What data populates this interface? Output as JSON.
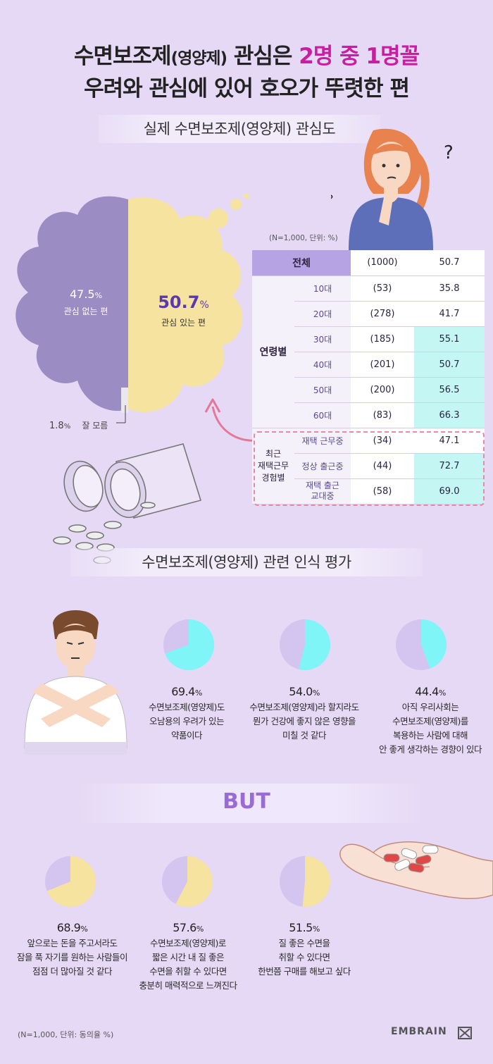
{
  "header": {
    "line1_a": "수면보조제",
    "line1_b": "(영양제)",
    "line1_c": " 관심은 ",
    "line1_hl": "2명 중 1명꼴",
    "line2": "우려와 관심에 있어 호오가 뚜렷한 편"
  },
  "section1": {
    "title": "실제 수면보조제(영양제) 관심도"
  },
  "cloud": {
    "no_interest_pct": "47.5",
    "no_interest_label": "관심 없는 편",
    "interest_pct": "50.7",
    "interest_label": "관심 있는 편",
    "unknown_pct": "1.8",
    "unknown_label": "잘 모름",
    "pct_sign": "%"
  },
  "table": {
    "note": "(N=1,000, 단위: %)",
    "total": {
      "label": "전체",
      "n": "(1000)",
      "value": "50.7"
    },
    "age_group_label": "연령별",
    "age_rows": [
      {
        "label": "10대",
        "n": "(53)",
        "value": "35.8",
        "highlight": false
      },
      {
        "label": "20대",
        "n": "(278)",
        "value": "41.7",
        "highlight": false
      },
      {
        "label": "30대",
        "n": "(185)",
        "value": "55.1",
        "highlight": true
      },
      {
        "label": "40대",
        "n": "(201)",
        "value": "50.7",
        "highlight": true
      },
      {
        "label": "50대",
        "n": "(200)",
        "value": "56.5",
        "highlight": true
      },
      {
        "label": "60대",
        "n": "(83)",
        "value": "66.3",
        "highlight": true
      }
    ],
    "remote_group_label_1": "최근",
    "remote_group_label_2": "재택근무",
    "remote_group_label_3": "경험별",
    "remote_rows": [
      {
        "label": "재택 근무중",
        "n": "(34)",
        "value": "47.1",
        "highlight": false
      },
      {
        "label": "정상 출근중",
        "n": "(44)",
        "value": "72.7",
        "highlight": true
      },
      {
        "label_1": "재택 출근",
        "label_2": "교대중",
        "n": "(58)",
        "value": "69.0",
        "highlight": true
      }
    ]
  },
  "section2": {
    "title": "수면보조제(영양제) 관련 인식 평가"
  },
  "negative_pies": [
    {
      "pct": "69.4",
      "lines": [
        "수면보조제(영양제)도",
        "오남용의 우려가 있는",
        "약품이다"
      ]
    },
    {
      "pct": "54.0",
      "lines": [
        "수면보조제(영양제)라 할지라도",
        "뭔가 건강에 좋지 않은 영향을",
        "미칠 것 같다"
      ]
    },
    {
      "pct": "44.4",
      "lines": [
        "아직 우리사회는",
        "수면보조제(영양제)를",
        "복용하는 사람에 대해",
        "안 좋게 생각하는 경향이 있다"
      ]
    }
  ],
  "but_label": "BUT",
  "positive_pies": [
    {
      "pct": "68.9",
      "lines": [
        "앞으로는 돈을 주고서라도",
        "잠을 푹 자기를 원하는 사람들이",
        "점점 더 많아질 것 같다"
      ]
    },
    {
      "pct": "57.6",
      "lines": [
        "수면보조제(영양제)로",
        "짧은 시간 내 질 좋은",
        "수면을 취할 수 있다면",
        "충분히 매력적으로 느껴진다"
      ]
    },
    {
      "pct": "51.5",
      "lines": [
        "질 좋은 수면을",
        "취할 수 있다면",
        "한번쯤 구매를 해보고 싶다"
      ]
    }
  ],
  "footer": {
    "note": "(N=1,000, 단위: 동의율 %)",
    "brand": "EMBRAIN"
  },
  "colors": {
    "background": "#e6d9f5",
    "highlight_title": "#c81fa0",
    "cloud_no": "#9b8cc4",
    "cloud_yes": "#f7e3a0",
    "pie_base": "#d4c4f0",
    "pie_negative": "#80f5f7",
    "pie_positive": "#f7e3a0",
    "table_highlight": "#c4f7f3",
    "table_head": "#b6a3e3",
    "arrow": "#e57896"
  },
  "chart_data": [
    {
      "type": "pie",
      "title": "실제 수면보조제(영양제) 관심도",
      "categories": [
        "관심 없는 편",
        "관심 있는 편",
        "잘 모름"
      ],
      "values": [
        47.5,
        50.7,
        1.8
      ],
      "unit": "%"
    },
    {
      "type": "table",
      "title": "",
      "columns": [
        "",
        "",
        "N",
        "%"
      ],
      "rows": [
        [
          "전체",
          "",
          1000,
          50.7
        ],
        [
          "연령별",
          "10대",
          53,
          35.8
        ],
        [
          "연령별",
          "20대",
          278,
          41.7
        ],
        [
          "연령별",
          "30대",
          185,
          55.1
        ],
        [
          "연령별",
          "40대",
          201,
          50.7
        ],
        [
          "연령별",
          "50대",
          200,
          56.5
        ],
        [
          "연령별",
          "60대",
          83,
          66.3
        ],
        [
          "최근 재택근무 경험별",
          "재택 근무중",
          34,
          47.1
        ],
        [
          "최근 재택근무 경험별",
          "정상 출근중",
          44,
          72.7
        ],
        [
          "최근 재택근무 경험별",
          "재택 출근 교대중",
          58,
          69.0
        ]
      ]
    },
    {
      "type": "pie",
      "title": "수면보조제(영양제) 관련 인식 평가",
      "items": [
        {
          "value": 69.4
        },
        {
          "value": 54.0
        },
        {
          "value": 44.4
        },
        {
          "value": 68.9
        },
        {
          "value": 57.6
        },
        {
          "value": 51.5
        }
      ],
      "unit": "동의율 %"
    }
  ]
}
